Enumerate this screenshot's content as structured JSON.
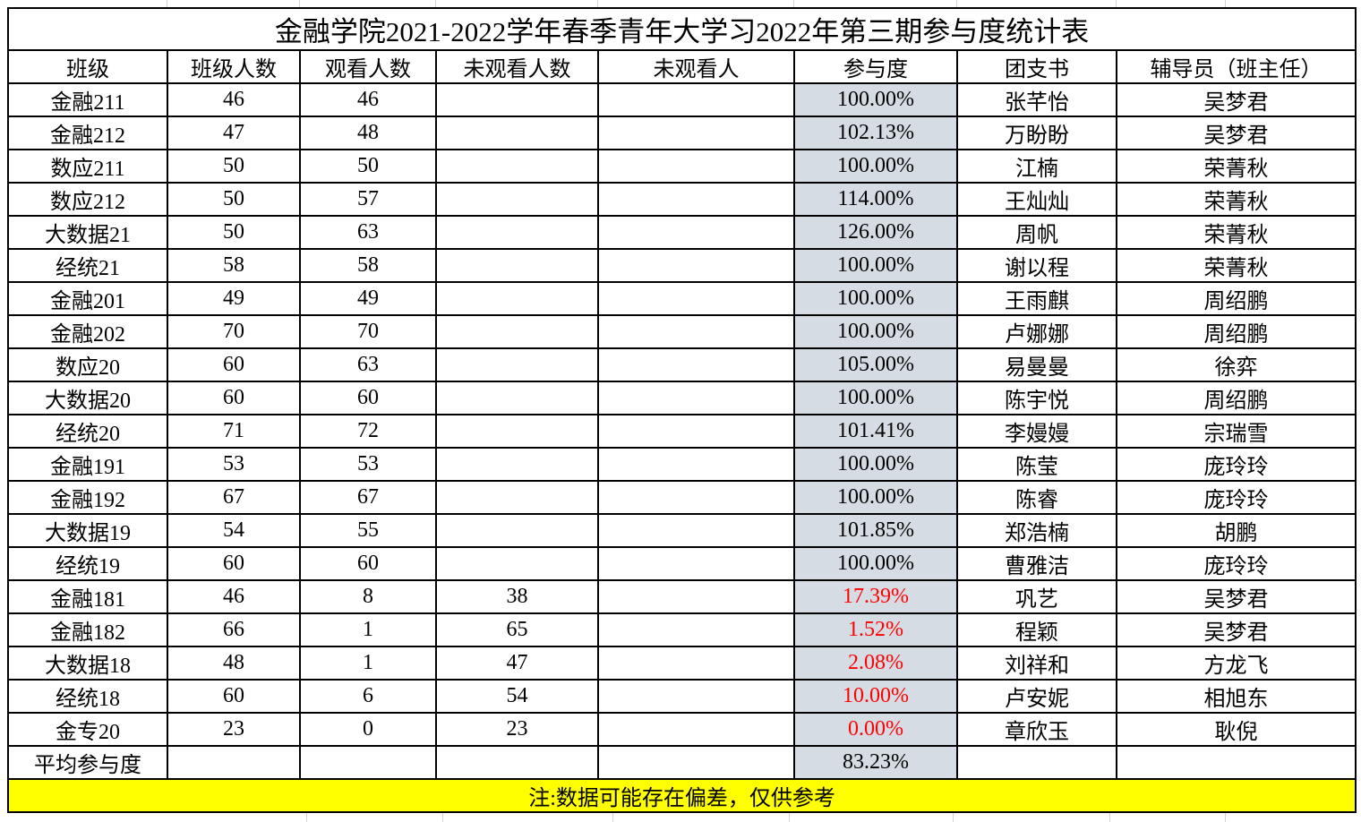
{
  "title": "金融学院2021-2022学年春季青年大学习2022年第三期参与度统计表",
  "note": "注:数据可能存在偏差，仅供参考",
  "columns": [
    "班级",
    "班级人数",
    "观看人数",
    "未观看人数",
    "未观看人",
    "参与度",
    "团支书",
    "辅导员（班主任）"
  ],
  "rows": [
    {
      "class": "金融211",
      "size": "46",
      "viewers": "46",
      "non_viewers": "",
      "non_viewer_names": "",
      "participation": "100.00%",
      "alert": false,
      "secretary": "张芊怡",
      "counselor": "吴梦君"
    },
    {
      "class": "金融212",
      "size": "47",
      "viewers": "48",
      "non_viewers": "",
      "non_viewer_names": "",
      "participation": "102.13%",
      "alert": false,
      "secretary": "万盼盼",
      "counselor": "吴梦君"
    },
    {
      "class": "数应211",
      "size": "50",
      "viewers": "50",
      "non_viewers": "",
      "non_viewer_names": "",
      "participation": "100.00%",
      "alert": false,
      "secretary": "江楠",
      "counselor": "荣菁秋"
    },
    {
      "class": "数应212",
      "size": "50",
      "viewers": "57",
      "non_viewers": "",
      "non_viewer_names": "",
      "participation": "114.00%",
      "alert": false,
      "secretary": "王灿灿",
      "counselor": "荣菁秋"
    },
    {
      "class": "大数据21",
      "size": "50",
      "viewers": "63",
      "non_viewers": "",
      "non_viewer_names": "",
      "participation": "126.00%",
      "alert": false,
      "secretary": "周帆",
      "counselor": "荣菁秋"
    },
    {
      "class": "经统21",
      "size": "58",
      "viewers": "58",
      "non_viewers": "",
      "non_viewer_names": "",
      "participation": "100.00%",
      "alert": false,
      "secretary": "谢以程",
      "counselor": "荣菁秋"
    },
    {
      "class": "金融201",
      "size": "49",
      "viewers": "49",
      "non_viewers": "",
      "non_viewer_names": "",
      "participation": "100.00%",
      "alert": false,
      "secretary": "王雨麒",
      "counselor": "周绍鹏"
    },
    {
      "class": "金融202",
      "size": "70",
      "viewers": "70",
      "non_viewers": "",
      "non_viewer_names": "",
      "participation": "100.00%",
      "alert": false,
      "secretary": "卢娜娜",
      "counselor": "周绍鹏"
    },
    {
      "class": "数应20",
      "size": "60",
      "viewers": "63",
      "non_viewers": "",
      "non_viewer_names": "",
      "participation": "105.00%",
      "alert": false,
      "secretary": "易曼曼",
      "counselor": "徐弈"
    },
    {
      "class": "大数据20",
      "size": "60",
      "viewers": "60",
      "non_viewers": "",
      "non_viewer_names": "",
      "participation": "100.00%",
      "alert": false,
      "secretary": "陈宇悦",
      "counselor": "周绍鹏"
    },
    {
      "class": "经统20",
      "size": "71",
      "viewers": "72",
      "non_viewers": "",
      "non_viewer_names": "",
      "participation": "101.41%",
      "alert": false,
      "secretary": "李嫚嫚",
      "counselor": "宗瑞雪"
    },
    {
      "class": "金融191",
      "size": "53",
      "viewers": "53",
      "non_viewers": "",
      "non_viewer_names": "",
      "participation": "100.00%",
      "alert": false,
      "secretary": "陈莹",
      "counselor": "庞玲玲"
    },
    {
      "class": "金融192",
      "size": "67",
      "viewers": "67",
      "non_viewers": "",
      "non_viewer_names": "",
      "participation": "100.00%",
      "alert": false,
      "secretary": "陈睿",
      "counselor": "庞玲玲"
    },
    {
      "class": "大数据19",
      "size": "54",
      "viewers": "55",
      "non_viewers": "",
      "non_viewer_names": "",
      "participation": "101.85%",
      "alert": false,
      "secretary": "郑浩楠",
      "counselor": "胡鹏"
    },
    {
      "class": "经统19",
      "size": "60",
      "viewers": "60",
      "non_viewers": "",
      "non_viewer_names": "",
      "participation": "100.00%",
      "alert": false,
      "secretary": "曹雅洁",
      "counselor": "庞玲玲"
    },
    {
      "class": "金融181",
      "size": "46",
      "viewers": "8",
      "non_viewers": "38",
      "non_viewer_names": "",
      "participation": "17.39%",
      "alert": true,
      "secretary": "巩艺",
      "counselor": "吴梦君"
    },
    {
      "class": "金融182",
      "size": "66",
      "viewers": "1",
      "non_viewers": "65",
      "non_viewer_names": "",
      "participation": "1.52%",
      "alert": true,
      "secretary": "程颖",
      "counselor": "吴梦君"
    },
    {
      "class": "大数据18",
      "size": "48",
      "viewers": "1",
      "non_viewers": "47",
      "non_viewer_names": "",
      "participation": "2.08%",
      "alert": true,
      "secretary": "刘祥和",
      "counselor": "方龙飞"
    },
    {
      "class": "经统18",
      "size": "60",
      "viewers": "6",
      "non_viewers": "54",
      "non_viewer_names": "",
      "participation": "10.00%",
      "alert": true,
      "secretary": "卢安妮",
      "counselor": "相旭东"
    },
    {
      "class": "金专20",
      "size": "23",
      "viewers": "0",
      "non_viewers": "23",
      "non_viewer_names": "",
      "participation": "0.00%",
      "alert": true,
      "secretary": "章欣玉",
      "counselor": "耿倪"
    },
    {
      "class": "平均参与度",
      "size": "",
      "viewers": "",
      "non_viewers": "",
      "non_viewer_names": "",
      "participation": "83.23%",
      "alert": false,
      "secretary": "",
      "counselor": ""
    }
  ],
  "colors": {
    "participation_bg": "#D6DCE4",
    "alert_text": "#FF0000",
    "note_bg": "#FFFF00",
    "border": "#000000",
    "gridline": "#D4D4D4"
  }
}
